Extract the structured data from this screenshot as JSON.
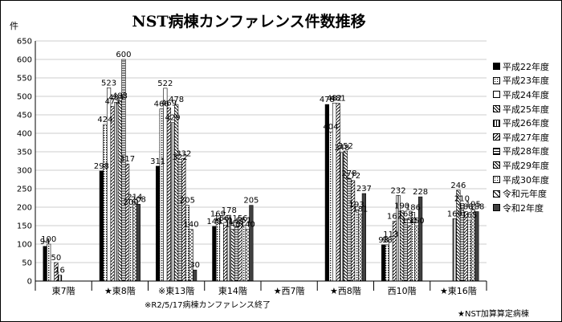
{
  "chart_data": {
    "type": "bar",
    "title": "NST病棟カンファレンス件数推移",
    "ylabel": "件",
    "ylim": [
      0,
      650
    ],
    "yticks": [
      0,
      50,
      100,
      150,
      200,
      250,
      300,
      350,
      400,
      450,
      500,
      550,
      600,
      650
    ],
    "grid": true,
    "legend_position": "right",
    "categories": [
      "東7階",
      "★東8階",
      "※東13階",
      "東14階",
      "★西7階",
      "★西8階",
      "西10階",
      "★東16階"
    ],
    "series": [
      {
        "name": "平成22年度",
        "pattern": "solid",
        "color": "#000000",
        "values": [
          94,
          298,
          311,
          148,
          null,
          478,
          98,
          null
        ]
      },
      {
        "name": "平成23年度",
        "pattern": "dots",
        "color": "#000000",
        "values": [
          100,
          424,
          466,
          169,
          null,
          404,
          98,
          null
        ]
      },
      {
        "name": "平成24年度",
        "pattern": "white",
        "color": "#000000",
        "values": [
          null,
          523,
          522,
          156,
          null,
          482,
          113,
          null
        ]
      },
      {
        "name": "平成25年度",
        "pattern": "diag",
        "color": "#000000",
        "values": [
          50,
          473,
          469,
          151,
          null,
          481,
          162,
          null
        ]
      },
      {
        "name": "平成26年度",
        "pattern": "vert",
        "color": "#000000",
        "values": [
          16,
          484,
          429,
          178,
          null,
          348,
          232,
          169
        ]
      },
      {
        "name": "平成27年度",
        "pattern": "diag2",
        "color": "#000000",
        "values": [
          null,
          488,
          478,
          140,
          null,
          352,
          190,
          246
        ]
      },
      {
        "name": "平成28年度",
        "pattern": "horiz",
        "color": "#000000",
        "values": [
          null,
          600,
          322,
          148,
          null,
          278,
          168,
          210
        ]
      },
      {
        "name": "平成29年度",
        "pattern": "diag",
        "color": "#000000",
        "values": [
          null,
          317,
          332,
          156,
          null,
          272,
          150,
          188
        ]
      },
      {
        "name": "平成30年度",
        "pattern": "dots",
        "color": "#000000",
        "values": [
          null,
          200,
          205,
          151,
          null,
          193,
          186,
          165
        ]
      },
      {
        "name": "令和元年度",
        "pattern": "dash",
        "color": "#000000",
        "values": [
          null,
          214,
          140,
          140,
          null,
          181,
          150,
          195
        ]
      },
      {
        "name": "令和2年度",
        "pattern": "solidgray",
        "color": "#404040",
        "values": [
          null,
          208,
          30,
          205,
          null,
          237,
          228,
          188
        ]
      }
    ],
    "data_labels": [
      [
        "94",
        "100",
        "",
        "50",
        "16",
        "",
        "",
        "",
        "",
        "",
        ""
      ],
      [
        "298",
        "424",
        "523",
        "473",
        "484",
        "488",
        "600",
        "317",
        "200",
        "214",
        "208"
      ],
      [
        "311",
        "466",
        "522",
        "469",
        "429",
        "478",
        "322",
        "332",
        "205",
        "140",
        "30"
      ],
      [
        "148",
        "169",
        "156",
        "151",
        "178",
        "140",
        "148",
        "156",
        "151",
        "140",
        "205"
      ],
      [
        "",
        "",
        "",
        "",
        "",
        "",
        "",
        "",
        "",
        "",
        ""
      ],
      [
        "478",
        "404",
        "482",
        "481",
        "348",
        "352",
        "278",
        "272",
        "193",
        "181",
        "237"
      ],
      [
        "98",
        "98",
        "113",
        "162",
        "232",
        "190",
        "168",
        "150",
        "186",
        "150",
        "228"
      ],
      [
        "",
        "",
        "",
        "",
        "169",
        "246",
        "210",
        "188",
        "165",
        "195",
        "188"
      ]
    ]
  },
  "note": "※R2/5/17病棟カンファレンス終了",
  "footnote": "★NST加算算定病棟"
}
